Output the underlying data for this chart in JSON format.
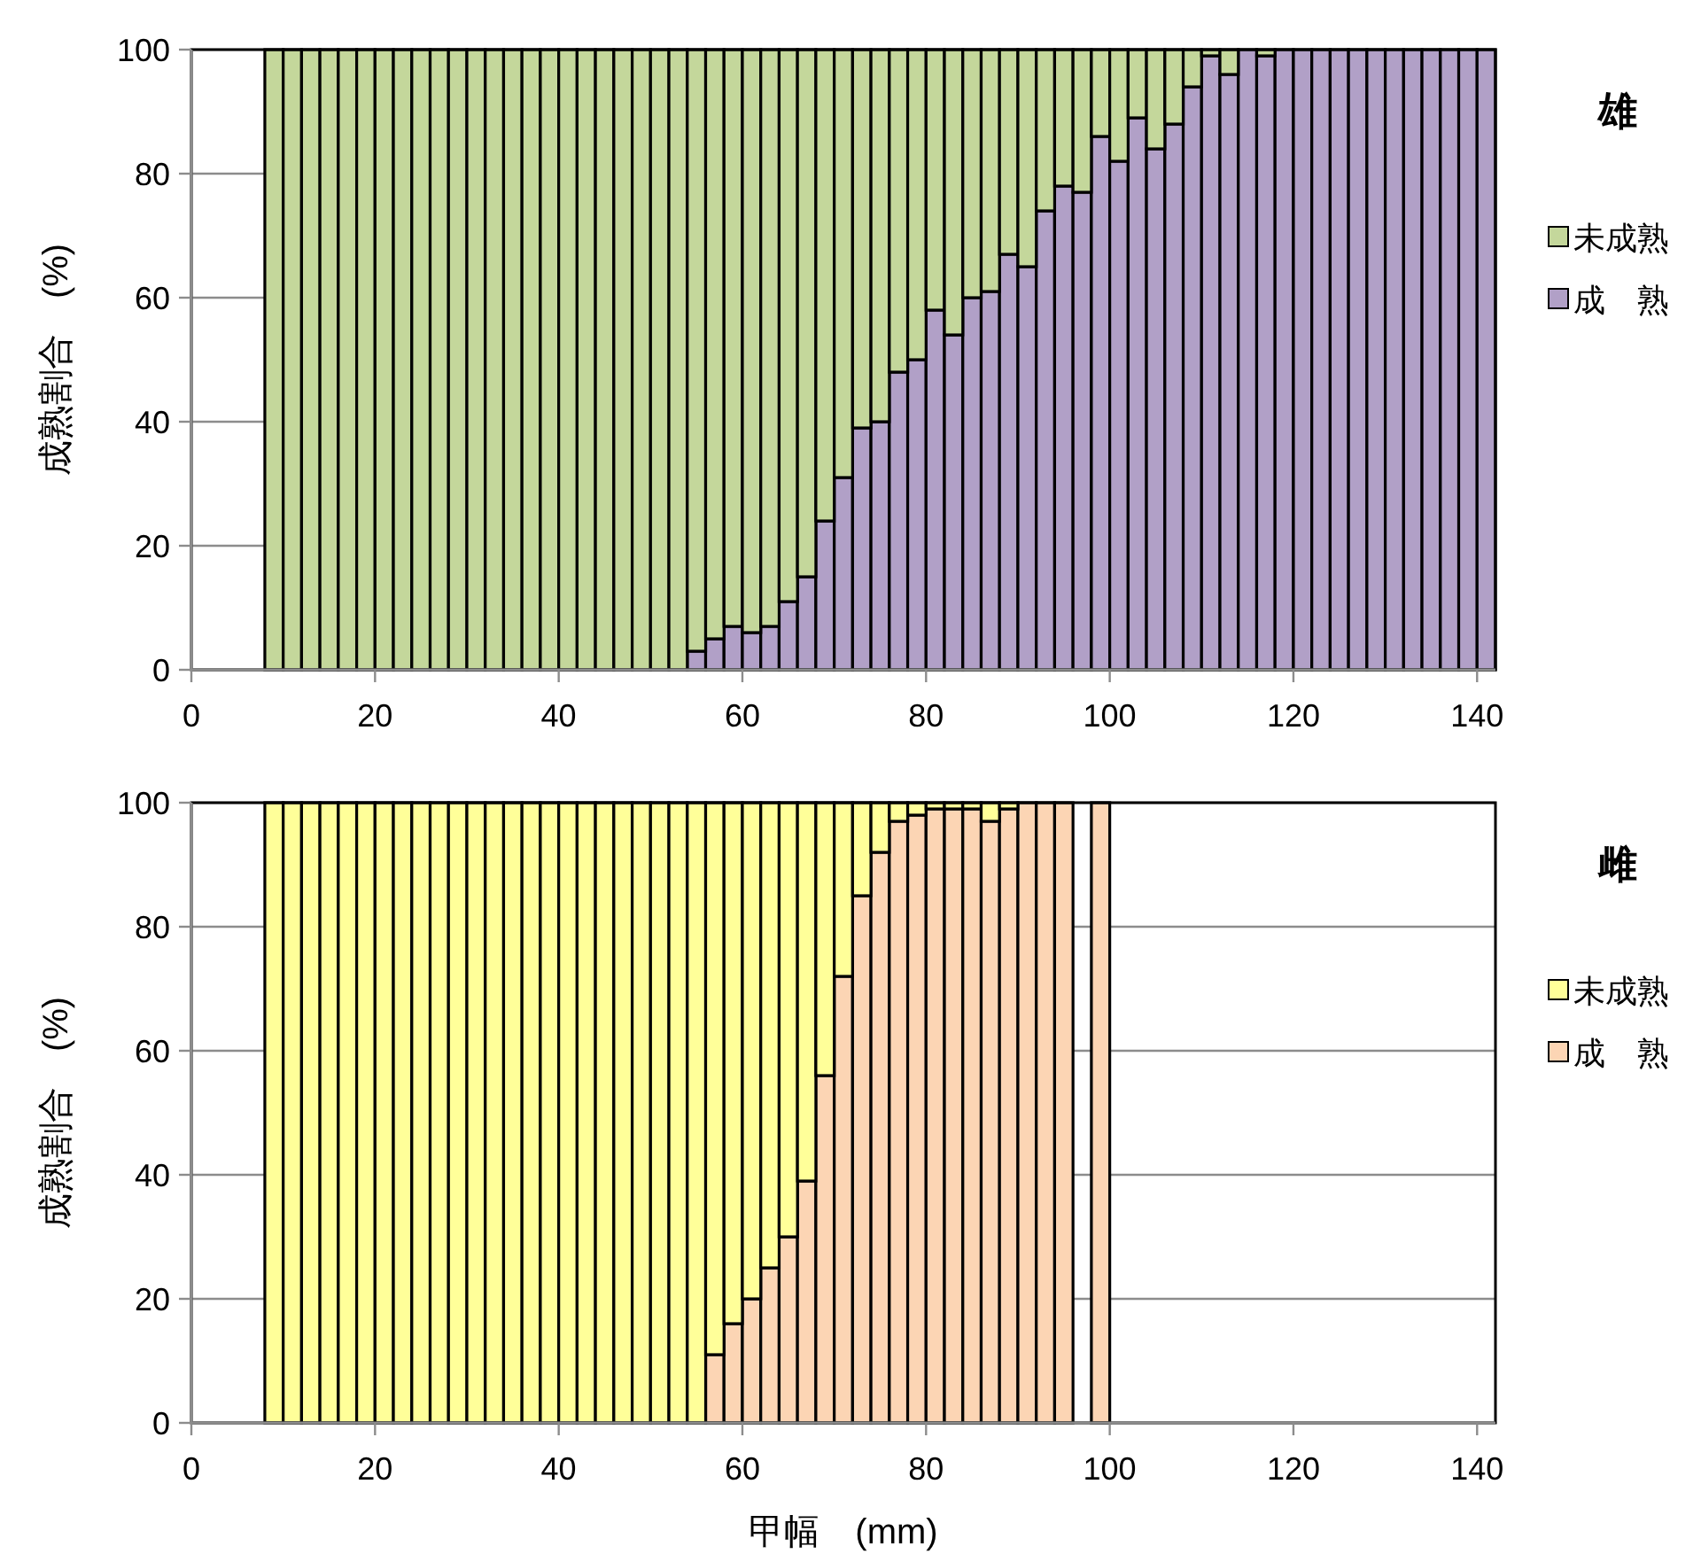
{
  "chart_data": [
    {
      "type": "bar",
      "stacked": true,
      "legend_title": "雄",
      "legend": "right",
      "grid": "y",
      "ylabel": "成熟割合　(%)",
      "x": [
        9,
        11,
        13,
        15,
        17,
        19,
        21,
        23,
        25,
        27,
        29,
        31,
        33,
        35,
        37,
        39,
        41,
        43,
        45,
        47,
        49,
        51,
        53,
        55,
        57,
        59,
        61,
        63,
        65,
        67,
        69,
        71,
        73,
        75,
        77,
        79,
        81,
        83,
        85,
        87,
        89,
        91,
        93,
        95,
        97,
        99,
        101,
        103,
        105,
        107,
        109,
        111,
        113,
        115,
        117,
        119,
        121,
        123,
        125,
        127,
        129,
        131,
        133,
        135,
        137,
        139,
        141
      ],
      "series": [
        {
          "name": "成　熟",
          "color": "#b1a0c7",
          "values": [
            0,
            0,
            0,
            0,
            0,
            0,
            0,
            0,
            0,
            0,
            0,
            0,
            0,
            0,
            0,
            0,
            0,
            0,
            0,
            0,
            0,
            0,
            0,
            3,
            5,
            7,
            6,
            7,
            11,
            15,
            24,
            31,
            39,
            40,
            48,
            50,
            58,
            54,
            60,
            61,
            67,
            65,
            74,
            78,
            77,
            86,
            82,
            89,
            84,
            88,
            94,
            99,
            96,
            100,
            99,
            100,
            100,
            100,
            100,
            100,
            100,
            100,
            100,
            100,
            100,
            100,
            100
          ]
        },
        {
          "name": "未成熟",
          "color": "#c4d79b",
          "values": [
            100,
            100,
            100,
            100,
            100,
            100,
            100,
            100,
            100,
            100,
            100,
            100,
            100,
            100,
            100,
            100,
            100,
            100,
            100,
            100,
            100,
            100,
            100,
            97,
            95,
            93,
            94,
            93,
            89,
            85,
            76,
            69,
            61,
            60,
            52,
            50,
            42,
            46,
            40,
            39,
            33,
            35,
            26,
            22,
            23,
            14,
            18,
            11,
            16,
            12,
            6,
            1,
            4,
            0,
            1,
            0,
            0,
            0,
            0,
            0,
            0,
            0,
            0,
            0,
            0,
            0,
            0
          ]
        }
      ],
      "xlim": [
        0,
        142
      ],
      "xticks": [
        0,
        20,
        40,
        60,
        80,
        100,
        120,
        140
      ],
      "ylim": [
        0,
        100
      ],
      "yticks": [
        0,
        20,
        40,
        60,
        80,
        100
      ]
    },
    {
      "type": "bar",
      "stacked": true,
      "legend_title": "雌",
      "legend": "right",
      "grid": "y",
      "ylabel": "成熟割合　(%)",
      "xlabel": "甲幅　(mm)",
      "x": [
        9,
        11,
        13,
        15,
        17,
        19,
        21,
        23,
        25,
        27,
        29,
        31,
        33,
        35,
        37,
        39,
        41,
        43,
        45,
        47,
        49,
        51,
        53,
        55,
        57,
        59,
        61,
        63,
        65,
        67,
        69,
        71,
        73,
        75,
        77,
        79,
        81,
        83,
        85,
        87,
        89,
        91,
        93,
        95,
        97,
        99
      ],
      "series": [
        {
          "name": "成　熟",
          "color": "#fcd5b4",
          "values": [
            0,
            0,
            0,
            0,
            0,
            0,
            0,
            0,
            0,
            0,
            0,
            0,
            0,
            0,
            0,
            0,
            0,
            0,
            0,
            0,
            0,
            0,
            0,
            0,
            11,
            16,
            20,
            25,
            30,
            39,
            56,
            72,
            85,
            92,
            97,
            98,
            99,
            99,
            99,
            97,
            99,
            100,
            100,
            100,
            null,
            100
          ]
        },
        {
          "name": "未成熟",
          "color": "#ffff99",
          "values": [
            100,
            100,
            100,
            100,
            100,
            100,
            100,
            100,
            100,
            100,
            100,
            100,
            100,
            100,
            100,
            100,
            100,
            100,
            100,
            100,
            100,
            100,
            100,
            100,
            89,
            84,
            80,
            75,
            70,
            61,
            44,
            28,
            15,
            8,
            3,
            2,
            1,
            1,
            1,
            3,
            1,
            0,
            0,
            0,
            null,
            0
          ]
        }
      ],
      "xlim": [
        0,
        142
      ],
      "xticks": [
        0,
        20,
        40,
        60,
        80,
        100,
        120,
        140
      ],
      "ylim": [
        0,
        100
      ],
      "yticks": [
        0,
        20,
        40,
        60,
        80,
        100
      ]
    }
  ]
}
